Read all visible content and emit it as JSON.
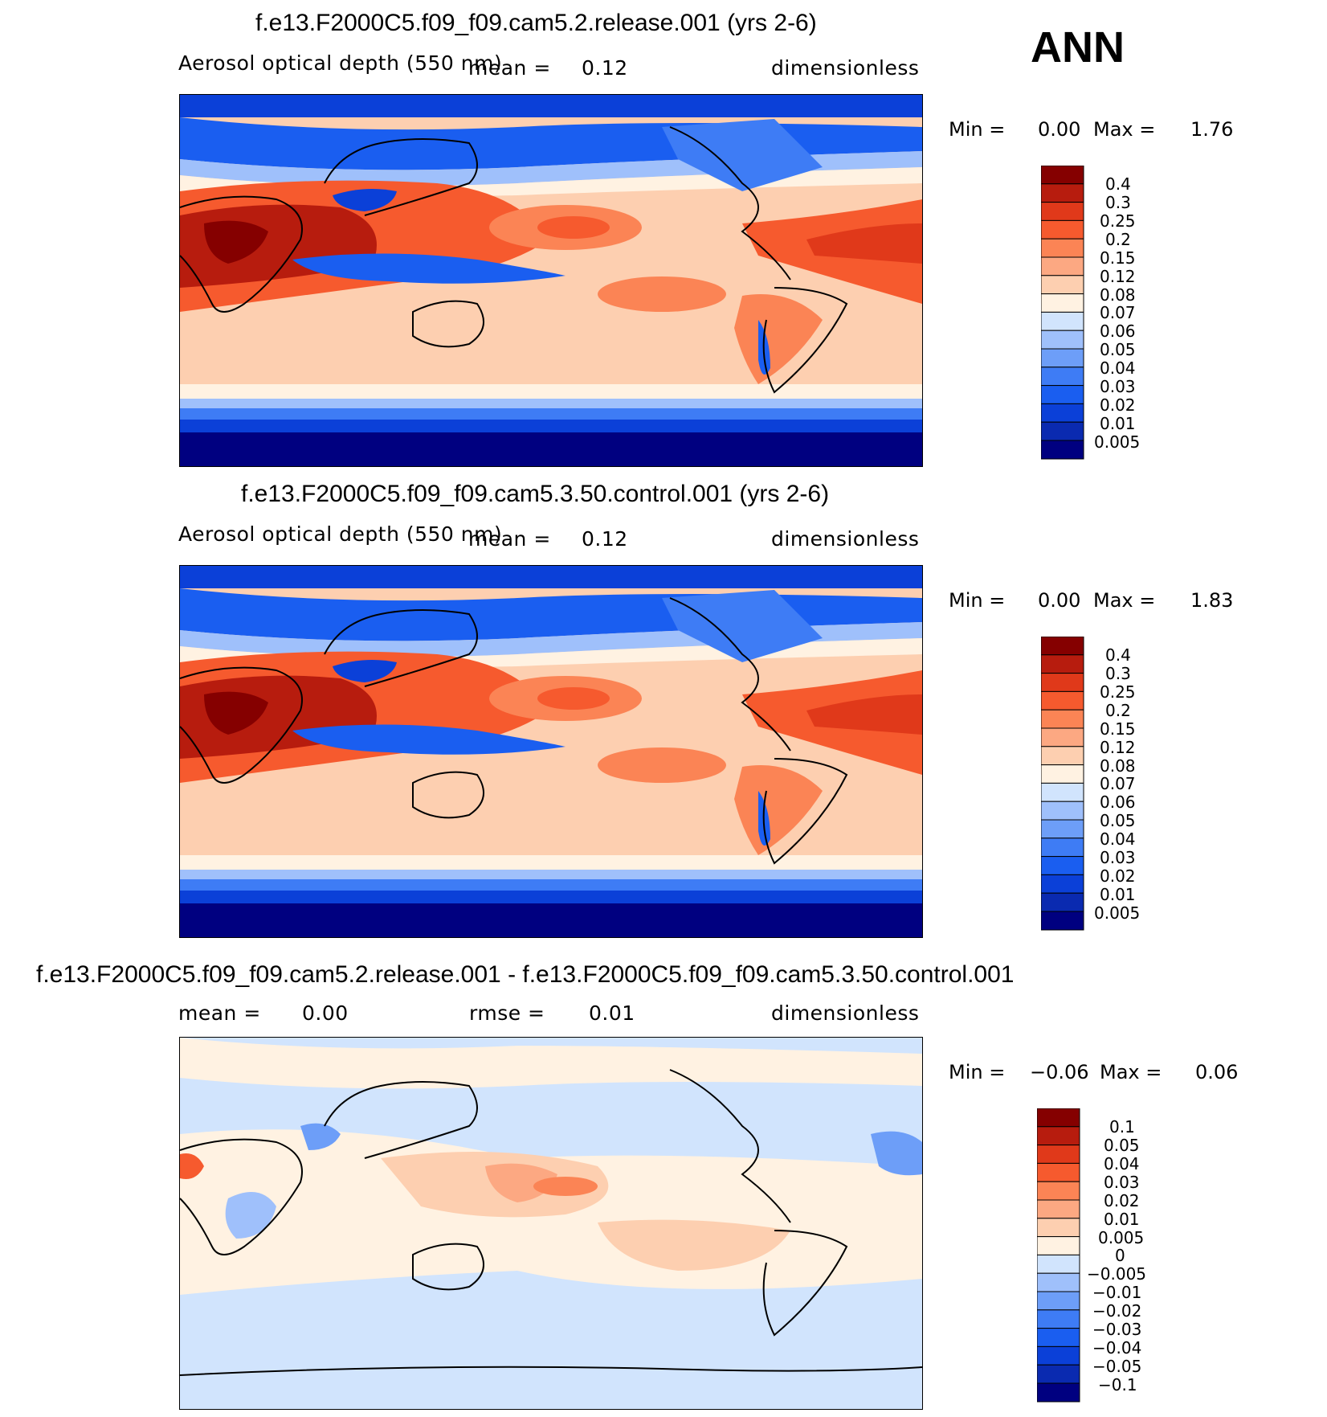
{
  "season": "ANN",
  "colors": {
    "seq": [
      "#000080",
      "#0a2ab0",
      "#0b40d8",
      "#1a5ef0",
      "#3e7cf5",
      "#6d9ef8",
      "#9fc0fb",
      "#d1e4fd",
      "#fff2e2",
      "#fdcfb0",
      "#fca882",
      "#fb8455",
      "#f65a2e",
      "#e0391a",
      "#b71c0e",
      "#850000"
    ],
    "diff": [
      "#000080",
      "#0a2ab0",
      "#0b40d8",
      "#1a5ef0",
      "#3e7cf5",
      "#6d9ef8",
      "#9fc0fb",
      "#d1e4fd",
      "#fff2e2",
      "#fdcfb0",
      "#fca882",
      "#fb8455",
      "#f65a2e",
      "#e0391a",
      "#b71c0e",
      "#850000"
    ]
  },
  "panels": [
    {
      "title": "f.e13.F2000C5.f09_f09.cam5.2.release.001 (yrs 2-6)",
      "variable": "Aerosol optical depth (550 nm)",
      "mean_label": "mean =",
      "mean_value": "0.12",
      "units": "dimensionless",
      "min_label": "Min =",
      "min_value": "0.00",
      "max_label": "Max =",
      "max_value": "1.76",
      "levels": [
        "0.4",
        "0.3",
        "0.25",
        "0.2",
        "0.15",
        "0.12",
        "0.08",
        "0.07",
        "0.06",
        "0.05",
        "0.04",
        "0.03",
        "0.02",
        "0.01",
        "0.005"
      ]
    },
    {
      "title": "f.e13.F2000C5.f09_f09.cam5.3.50.control.001 (yrs 2-6)",
      "variable": "Aerosol optical depth (550 nm)",
      "mean_label": "mean =",
      "mean_value": "0.12",
      "units": "dimensionless",
      "min_label": "Min =",
      "min_value": "0.00",
      "max_label": "Max =",
      "max_value": "1.83",
      "levels": [
        "0.4",
        "0.3",
        "0.25",
        "0.2",
        "0.15",
        "0.12",
        "0.08",
        "0.07",
        "0.06",
        "0.05",
        "0.04",
        "0.03",
        "0.02",
        "0.01",
        "0.005"
      ]
    },
    {
      "title": "f.e13.F2000C5.f09_f09.cam5.2.release.001 - f.e13.F2000C5.f09_f09.cam5.3.50.control.001",
      "mean_label": "mean =",
      "mean_value": "0.00",
      "rmse_label": "rmse =",
      "rmse_value": "0.01",
      "units": "dimensionless",
      "min_label": "Min =",
      "min_value": "−0.06",
      "max_label": "Max =",
      "max_value": "0.06",
      "levels": [
        "0.1",
        "0.05",
        "0.04",
        "0.03",
        "0.02",
        "0.01",
        "0.005",
        "0",
        "−0.005",
        "−0.01",
        "−0.02",
        "−0.03",
        "−0.04",
        "−0.05",
        "−0.1"
      ]
    }
  ]
}
